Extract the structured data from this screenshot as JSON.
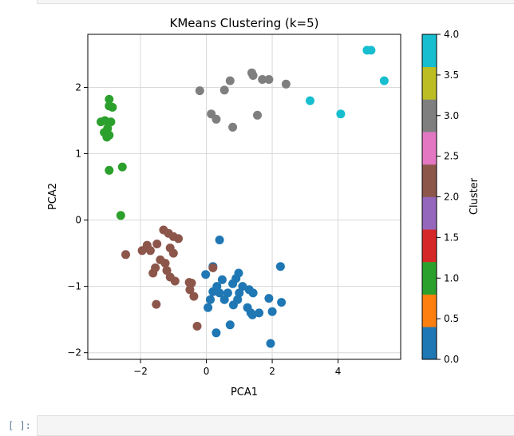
{
  "chart_data": {
    "type": "scatter",
    "title": "KMeans Clustering (k=5)",
    "xlabel": "PCA1",
    "ylabel": "PCA2",
    "xlim": [
      -3.6,
      5.9
    ],
    "ylim": [
      -2.1,
      2.8
    ],
    "xticks": [
      -2,
      0,
      2,
      4
    ],
    "yticks": [
      -2,
      -1,
      0,
      1,
      2
    ],
    "grid": true,
    "colorbar": {
      "label": "Cluster",
      "range": [
        0,
        4
      ],
      "ticks": [
        "0.0",
        "0.5",
        "1.0",
        "1.5",
        "2.0",
        "2.5",
        "3.0",
        "3.5",
        "4.0"
      ],
      "colors": [
        "#1f77b4",
        "#ff7f0e",
        "#2ca02c",
        "#d62728",
        "#9467bd",
        "#8c564b",
        "#e377c2",
        "#7f7f7f",
        "#bcbd22",
        "#17becf"
      ]
    },
    "series": [
      {
        "cluster": 0,
        "color": "#1f77b4",
        "points": [
          [
            0.4,
            -0.3
          ],
          [
            -0.02,
            -0.82
          ],
          [
            0.2,
            -0.7
          ],
          [
            0.9,
            -0.88
          ],
          [
            0.98,
            -0.8
          ],
          [
            2.25,
            -0.7
          ],
          [
            0.48,
            -0.9
          ],
          [
            0.8,
            -0.96
          ],
          [
            0.32,
            -1.0
          ],
          [
            1.1,
            -1.0
          ],
          [
            0.2,
            -1.08
          ],
          [
            0.4,
            -1.1
          ],
          [
            0.65,
            -1.1
          ],
          [
            1.3,
            -1.05
          ],
          [
            1.0,
            -1.1
          ],
          [
            0.12,
            -1.2
          ],
          [
            0.55,
            -1.2
          ],
          [
            0.95,
            -1.2
          ],
          [
            1.42,
            -1.1
          ],
          [
            1.9,
            -1.18
          ],
          [
            0.82,
            -1.28
          ],
          [
            0.05,
            -1.32
          ],
          [
            1.25,
            -1.32
          ],
          [
            1.35,
            -1.4
          ],
          [
            1.6,
            -1.4
          ],
          [
            2.0,
            -1.38
          ],
          [
            2.28,
            -1.24
          ],
          [
            1.4,
            -1.43
          ],
          [
            0.72,
            -1.58
          ],
          [
            0.3,
            -1.7
          ],
          [
            1.95,
            -1.86
          ]
        ]
      },
      {
        "cluster": 1,
        "color": "#2ca02c",
        "points": [
          [
            -2.95,
            1.82
          ],
          [
            -2.95,
            1.72
          ],
          [
            -2.85,
            1.7
          ],
          [
            -3.2,
            1.48
          ],
          [
            -3.08,
            1.5
          ],
          [
            -2.9,
            1.48
          ],
          [
            -3.0,
            1.38
          ],
          [
            -3.1,
            1.32
          ],
          [
            -2.95,
            1.28
          ],
          [
            -3.02,
            1.25
          ],
          [
            -2.95,
            0.75
          ],
          [
            -2.55,
            0.8
          ],
          [
            -2.6,
            0.07
          ]
        ]
      },
      {
        "cluster": 2,
        "color": "#8c564b",
        "points": [
          [
            -1.3,
            -0.15
          ],
          [
            -1.15,
            -0.2
          ],
          [
            -1.0,
            -0.25
          ],
          [
            -0.85,
            -0.28
          ],
          [
            -1.8,
            -0.38
          ],
          [
            -1.5,
            -0.36
          ],
          [
            -1.7,
            -0.46
          ],
          [
            -1.95,
            -0.46
          ],
          [
            -1.1,
            -0.42
          ],
          [
            -2.45,
            -0.52
          ],
          [
            -1.0,
            -0.5
          ],
          [
            -1.4,
            -0.6
          ],
          [
            -1.25,
            -0.65
          ],
          [
            -1.55,
            -0.72
          ],
          [
            -1.2,
            -0.76
          ],
          [
            -1.62,
            -0.8
          ],
          [
            -1.1,
            -0.86
          ],
          [
            -0.95,
            -0.92
          ],
          [
            -0.52,
            -0.94
          ],
          [
            -0.45,
            -0.95
          ],
          [
            -0.5,
            -1.05
          ],
          [
            -0.38,
            -1.15
          ],
          [
            -1.52,
            -1.27
          ],
          [
            -0.28,
            -1.6
          ],
          [
            0.2,
            -0.72
          ]
        ]
      },
      {
        "cluster": 3,
        "color": "#7f7f7f",
        "points": [
          [
            1.38,
            2.22
          ],
          [
            1.42,
            2.18
          ],
          [
            1.7,
            2.12
          ],
          [
            1.9,
            2.12
          ],
          [
            2.42,
            2.05
          ],
          [
            0.72,
            2.1
          ],
          [
            0.55,
            1.96
          ],
          [
            -0.2,
            1.95
          ],
          [
            0.15,
            1.6
          ],
          [
            0.3,
            1.52
          ],
          [
            1.55,
            1.58
          ],
          [
            0.8,
            1.4
          ]
        ]
      },
      {
        "cluster": 4,
        "color": "#17becf",
        "points": [
          [
            4.88,
            2.56
          ],
          [
            5.0,
            2.56
          ],
          [
            5.4,
            2.1
          ],
          [
            3.15,
            1.8
          ],
          [
            4.08,
            1.6
          ]
        ]
      }
    ]
  }
}
